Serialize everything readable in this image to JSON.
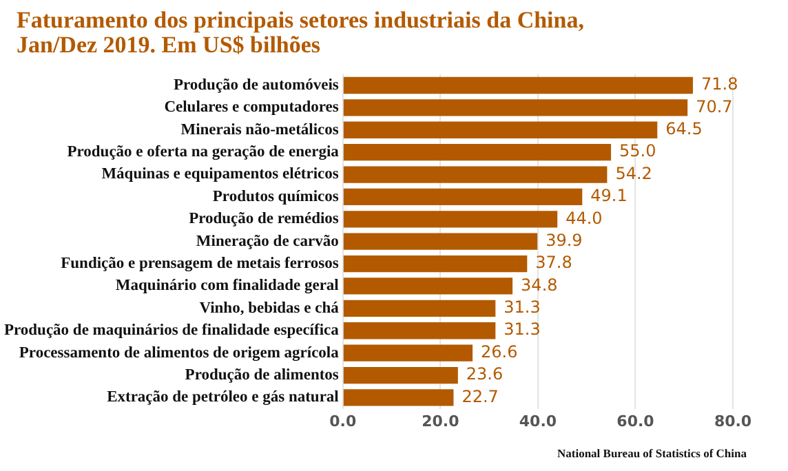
{
  "chart_data": {
    "type": "bar",
    "orientation": "horizontal",
    "title": "Faturamento dos principais setores industriais da China, Jan/Dez 2019. Em US$ bilhões",
    "categories": [
      "Produção de automóveis",
      "Celulares e computadores",
      "Minerais não-metálicos",
      "Produção e oferta na geração de energia",
      "Máquinas e equipamentos elétricos",
      "Produtos químicos",
      "Produção de remédios",
      "Mineração de carvão",
      "Fundição e prensagem de metais ferrosos",
      "Maquinário com finalidade geral",
      "Vinho, bebidas e chá",
      "Produção de maquinários de finalidade específica",
      "Processamento de alimentos de origem agrícola",
      "Produção de alimentos",
      "Extração de petróleo e gás natural"
    ],
    "values": [
      71.8,
      70.7,
      64.5,
      55.0,
      54.2,
      49.1,
      44.0,
      39.9,
      37.8,
      34.8,
      31.3,
      31.3,
      26.6,
      23.6,
      22.7
    ],
    "value_labels": [
      "71.8",
      "70.7",
      "64.5",
      "55.0",
      "54.2",
      "49.1",
      "44.0",
      "39.9",
      "37.8",
      "34.8",
      "31.3",
      "31.3",
      "26.6",
      "23.6",
      "22.7"
    ],
    "color": "#b35a00",
    "xlim": [
      0,
      80
    ],
    "xticks": [
      {
        "value": 0,
        "label": "0.0"
      },
      {
        "value": 20,
        "label": "20.0"
      },
      {
        "value": 40,
        "label": "40.0"
      },
      {
        "value": 60,
        "label": "60.0"
      },
      {
        "value": 80,
        "label": "80.0"
      }
    ],
    "grid": "x",
    "annotations": [
      "National Bureau of Statistics of China"
    ]
  }
}
